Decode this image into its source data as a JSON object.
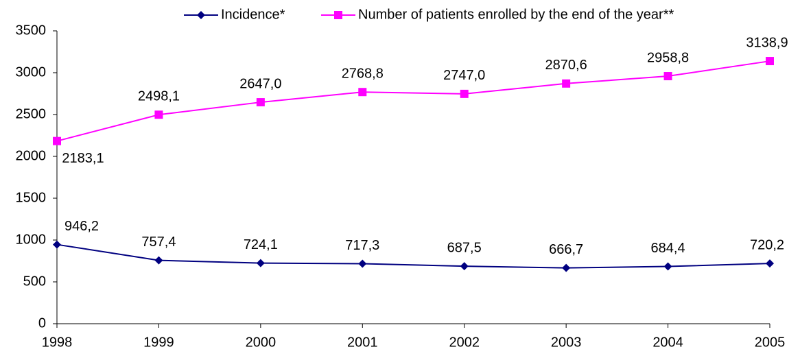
{
  "chart_data": {
    "type": "line",
    "categories": [
      "1998",
      "1999",
      "2000",
      "2001",
      "2002",
      "2003",
      "2004",
      "2005"
    ],
    "series": [
      {
        "name": "Incidence*",
        "color": "#000080",
        "marker": "diamond",
        "values": [
          946.2,
          757.4,
          724.1,
          717.3,
          687.5,
          666.7,
          684.4,
          720.2
        ],
        "value_labels": [
          "946,2",
          "757,4",
          "724,1",
          "717,3",
          "687,5",
          "666,7",
          "684,4",
          "720,2"
        ]
      },
      {
        "name": "Number of patients enrolled by the end of the year**",
        "color": "#ff00ff",
        "marker": "square",
        "values": [
          2183.1,
          2498.1,
          2647.0,
          2768.8,
          2747.0,
          2870.6,
          2958.8,
          3138.9
        ],
        "value_labels": [
          "2183,1",
          "2498,1",
          "2647,0",
          "2768,8",
          "2747,0",
          "2870,6",
          "2958,8",
          "3138,9"
        ]
      }
    ],
    "ylim": [
      0,
      3500
    ],
    "yticks": [
      0,
      500,
      1000,
      1500,
      2000,
      2500,
      3000,
      3500
    ],
    "grid": false,
    "legend": "top"
  }
}
